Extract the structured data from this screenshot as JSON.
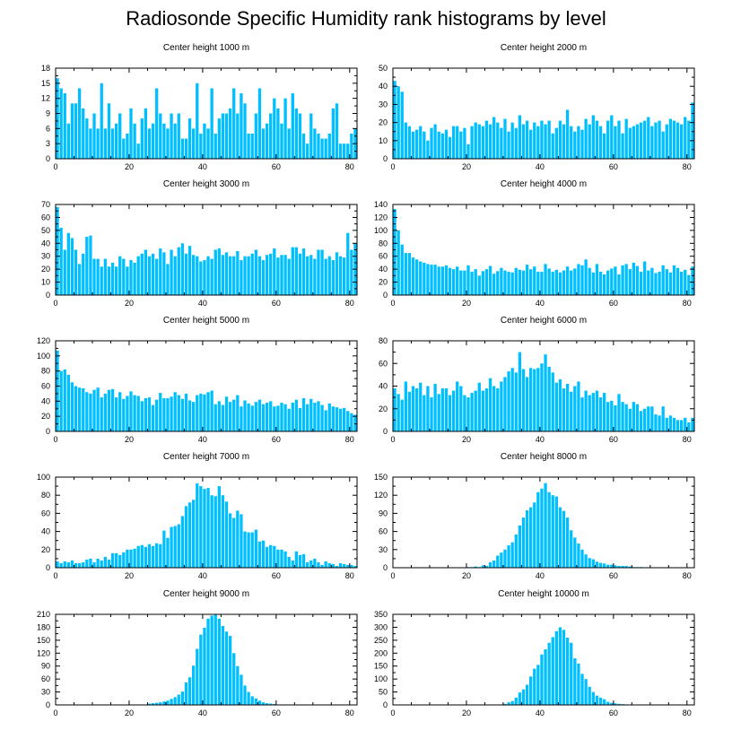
{
  "title": "Radiosonde Specific Humidity rank histograms by level",
  "bar_color": "#00bfff",
  "chart_data": [
    {
      "type": "bar",
      "title": "Center height 1000 m",
      "xlabel": "",
      "ylabel": "",
      "xlim": [
        0,
        82
      ],
      "ylim": [
        0,
        18
      ],
      "xticks": [
        0,
        20,
        40,
        60,
        80
      ],
      "yticks": [
        0,
        3,
        6,
        9,
        12,
        15,
        18
      ],
      "values": [
        16,
        14,
        13,
        7,
        11,
        11,
        14,
        10,
        8,
        6,
        9,
        6,
        15,
        6,
        11,
        6,
        7,
        9,
        4,
        5,
        10,
        7,
        3,
        8,
        10,
        6,
        7,
        14,
        9,
        7,
        6,
        9,
        7,
        9,
        4,
        4,
        8,
        6,
        15,
        5,
        7,
        6,
        14,
        5,
        8,
        9,
        9,
        10,
        14,
        9,
        13,
        11,
        5,
        5,
        9,
        14,
        6,
        7,
        9,
        12,
        10,
        7,
        12,
        6,
        13,
        10,
        9,
        5,
        3,
        9,
        6,
        5,
        4,
        4,
        5,
        10,
        11,
        3,
        3,
        3,
        5,
        6
      ]
    },
    {
      "type": "bar",
      "title": "Center height 2000 m",
      "xlabel": "",
      "ylabel": "",
      "xlim": [
        0,
        82
      ],
      "ylim": [
        0,
        50
      ],
      "xticks": [
        0,
        20,
        40,
        60,
        80
      ],
      "yticks": [
        0,
        10,
        20,
        30,
        40,
        50
      ],
      "values": [
        43,
        40,
        37,
        20,
        18,
        15,
        16,
        18,
        15,
        10,
        17,
        19,
        15,
        14,
        16,
        12,
        18,
        18,
        15,
        17,
        8,
        18,
        20,
        19,
        18,
        21,
        19,
        23,
        20,
        17,
        22,
        15,
        20,
        17,
        24,
        19,
        21,
        16,
        20,
        18,
        21,
        19,
        21,
        14,
        17,
        21,
        19,
        27,
        18,
        15,
        18,
        16,
        22,
        19,
        24,
        21,
        18,
        14,
        21,
        24,
        18,
        21,
        14,
        22,
        17,
        18,
        19,
        20,
        21,
        23,
        18,
        20,
        21,
        15,
        19,
        22,
        21,
        20,
        19,
        23,
        21,
        31
      ]
    },
    {
      "type": "bar",
      "title": "Center height 3000 m",
      "xlabel": "",
      "ylabel": "",
      "xlim": [
        0,
        82
      ],
      "ylim": [
        0,
        70
      ],
      "xticks": [
        0,
        20,
        40,
        60,
        80
      ],
      "yticks": [
        0,
        10,
        20,
        30,
        40,
        50,
        60,
        70
      ],
      "values": [
        68,
        52,
        35,
        48,
        44,
        35,
        24,
        32,
        45,
        46,
        28,
        28,
        22,
        28,
        22,
        25,
        22,
        30,
        28,
        22,
        27,
        25,
        30,
        32,
        35,
        30,
        32,
        28,
        36,
        33,
        24,
        35,
        30,
        37,
        40,
        32,
        38,
        31,
        30,
        26,
        27,
        30,
        28,
        35,
        36,
        31,
        33,
        30,
        30,
        34,
        27,
        30,
        30,
        32,
        35,
        30,
        27,
        31,
        32,
        36,
        29,
        31,
        31,
        28,
        37,
        37,
        32,
        36,
        30,
        31,
        28,
        35,
        35,
        28,
        30,
        27,
        33,
        30,
        29,
        48,
        35,
        40
      ]
    },
    {
      "type": "bar",
      "title": "Center height 4000 m",
      "xlabel": "",
      "ylabel": "",
      "xlim": [
        0,
        82
      ],
      "ylim": [
        0,
        140
      ],
      "xticks": [
        0,
        20,
        40,
        60,
        80
      ],
      "yticks": [
        0,
        20,
        40,
        60,
        80,
        100,
        120,
        140
      ],
      "values": [
        133,
        100,
        78,
        65,
        65,
        58,
        55,
        52,
        50,
        48,
        47,
        47,
        44,
        44,
        46,
        42,
        40,
        44,
        38,
        38,
        46,
        36,
        40,
        30,
        37,
        40,
        45,
        33,
        37,
        42,
        38,
        36,
        35,
        42,
        39,
        38,
        47,
        40,
        44,
        36,
        36,
        48,
        41,
        36,
        39,
        35,
        38,
        44,
        38,
        41,
        48,
        46,
        55,
        42,
        35,
        48,
        36,
        32,
        38,
        41,
        44,
        32,
        46,
        48,
        40,
        50,
        45,
        36,
        52,
        38,
        42,
        34,
        36,
        46,
        40,
        35,
        46,
        42,
        36,
        39,
        31,
        44
      ]
    },
    {
      "type": "bar",
      "title": "Center height 5000 m",
      "xlabel": "",
      "ylabel": "",
      "xlim": [
        0,
        82
      ],
      "ylim": [
        0,
        120
      ],
      "xticks": [
        0,
        20,
        40,
        60,
        80
      ],
      "yticks": [
        0,
        20,
        40,
        60,
        80,
        100,
        120
      ],
      "values": [
        107,
        80,
        82,
        75,
        65,
        60,
        58,
        57,
        52,
        50,
        55,
        58,
        45,
        50,
        55,
        56,
        45,
        52,
        43,
        47,
        53,
        48,
        47,
        40,
        44,
        45,
        35,
        42,
        51,
        44,
        44,
        46,
        52,
        48,
        43,
        50,
        41,
        39,
        48,
        50,
        49,
        52,
        54,
        36,
        40,
        35,
        46,
        39,
        42,
        48,
        33,
        41,
        37,
        34,
        39,
        42,
        36,
        38,
        40,
        33,
        34,
        38,
        36,
        30,
        38,
        42,
        31,
        44,
        36,
        43,
        38,
        40,
        35,
        28,
        37,
        33,
        32,
        30,
        31,
        27,
        24,
        22
      ]
    },
    {
      "type": "bar",
      "title": "Center height 6000 m",
      "xlabel": "",
      "ylabel": "",
      "xlim": [
        0,
        82
      ],
      "ylim": [
        0,
        80
      ],
      "xticks": [
        0,
        20,
        40,
        60,
        80
      ],
      "yticks": [
        0,
        20,
        40,
        60,
        80
      ],
      "values": [
        38,
        33,
        28,
        44,
        35,
        40,
        38,
        43,
        32,
        40,
        30,
        42,
        33,
        38,
        38,
        32,
        36,
        44,
        40,
        32,
        30,
        34,
        36,
        43,
        36,
        38,
        47,
        40,
        38,
        44,
        48,
        53,
        56,
        52,
        70,
        55,
        48,
        56,
        55,
        56,
        60,
        68,
        57,
        52,
        43,
        46,
        38,
        42,
        35,
        40,
        44,
        30,
        36,
        32,
        34,
        36,
        30,
        34,
        26,
        27,
        23,
        33,
        26,
        24,
        20,
        26,
        24,
        18,
        20,
        22,
        22,
        15,
        14,
        22,
        12,
        14,
        12,
        10,
        10,
        12,
        8,
        12
      ]
    },
    {
      "type": "bar",
      "title": "Center height 7000 m",
      "xlabel": "",
      "ylabel": "",
      "xlim": [
        0,
        82
      ],
      "ylim": [
        0,
        100
      ],
      "xticks": [
        0,
        20,
        40,
        60,
        80
      ],
      "yticks": [
        0,
        20,
        40,
        60,
        80,
        100
      ],
      "values": [
        7,
        5,
        7,
        6,
        8,
        5,
        5,
        6,
        9,
        10,
        6,
        10,
        8,
        12,
        9,
        16,
        16,
        14,
        17,
        20,
        20,
        21,
        24,
        25,
        23,
        26,
        24,
        27,
        26,
        41,
        33,
        45,
        46,
        48,
        57,
        68,
        72,
        75,
        93,
        90,
        87,
        88,
        80,
        79,
        90,
        80,
        73,
        60,
        55,
        63,
        59,
        40,
        39,
        39,
        42,
        29,
        30,
        23,
        25,
        24,
        20,
        20,
        18,
        12,
        8,
        18,
        14,
        15,
        6,
        8,
        10,
        6,
        3,
        7,
        5,
        4,
        2,
        5,
        4,
        3,
        3,
        2
      ]
    },
    {
      "type": "bar",
      "title": "Center height 8000 m",
      "xlabel": "",
      "ylabel": "",
      "xlim": [
        0,
        82
      ],
      "ylim": [
        0,
        150
      ],
      "xticks": [
        0,
        20,
        40,
        60,
        80
      ],
      "yticks": [
        0,
        30,
        60,
        90,
        120,
        150
      ],
      "values": [
        0,
        0,
        0,
        0,
        0,
        0,
        0,
        0,
        0,
        0,
        0,
        0,
        0,
        0,
        0,
        0,
        0,
        0,
        0,
        0,
        1,
        1,
        2,
        1,
        4,
        3,
        9,
        12,
        20,
        25,
        30,
        37,
        42,
        55,
        70,
        83,
        95,
        100,
        108,
        125,
        131,
        140,
        125,
        120,
        118,
        100,
        94,
        83,
        62,
        50,
        40,
        30,
        22,
        16,
        14,
        10,
        8,
        7,
        5,
        5,
        4,
        3,
        3,
        3,
        2,
        1,
        1,
        1,
        0,
        0,
        0,
        0,
        0,
        0,
        0,
        0,
        0,
        0,
        0,
        0,
        0,
        0
      ]
    },
    {
      "type": "bar",
      "title": "Center height 9000 m",
      "xlabel": "",
      "ylabel": "",
      "xlim": [
        0,
        82
      ],
      "ylim": [
        0,
        210
      ],
      "xticks": [
        0,
        20,
        40,
        60,
        80
      ],
      "yticks": [
        0,
        30,
        60,
        90,
        120,
        150,
        180,
        210
      ],
      "values": [
        0,
        0,
        0,
        0,
        0,
        0,
        0,
        0,
        0,
        0,
        0,
        0,
        0,
        0,
        0,
        0,
        0,
        0,
        0,
        0,
        0,
        0,
        0,
        0,
        0,
        3,
        4,
        5,
        6,
        8,
        10,
        14,
        18,
        24,
        31,
        52,
        64,
        91,
        130,
        163,
        179,
        200,
        207,
        210,
        200,
        183,
        170,
        160,
        120,
        90,
        70,
        45,
        30,
        20,
        15,
        10,
        6,
        4,
        3,
        2,
        1,
        0,
        0,
        0,
        0,
        0,
        0,
        0,
        0,
        0,
        0,
        0,
        0,
        0,
        0,
        0,
        0,
        0,
        0,
        0,
        0,
        0
      ]
    },
    {
      "type": "bar",
      "title": "Center height 10000 m",
      "xlabel": "",
      "ylabel": "",
      "xlim": [
        0,
        82
      ],
      "ylim": [
        0,
        350
      ],
      "xticks": [
        0,
        20,
        40,
        60,
        80
      ],
      "yticks": [
        0,
        50,
        100,
        150,
        200,
        250,
        300,
        350
      ],
      "values": [
        0,
        0,
        0,
        0,
        0,
        0,
        0,
        0,
        0,
        0,
        0,
        0,
        0,
        0,
        0,
        0,
        0,
        0,
        0,
        0,
        0,
        0,
        0,
        0,
        0,
        0,
        0,
        0,
        0,
        2,
        4,
        10,
        15,
        28,
        48,
        60,
        78,
        110,
        140,
        155,
        195,
        215,
        240,
        262,
        285,
        300,
        290,
        260,
        240,
        180,
        160,
        120,
        100,
        70,
        50,
        36,
        28,
        22,
        12,
        8,
        6,
        4,
        3,
        2,
        1,
        1,
        0,
        0,
        0,
        0,
        0,
        0,
        0,
        0,
        0,
        0,
        0,
        0,
        0,
        0,
        0,
        0
      ]
    }
  ]
}
